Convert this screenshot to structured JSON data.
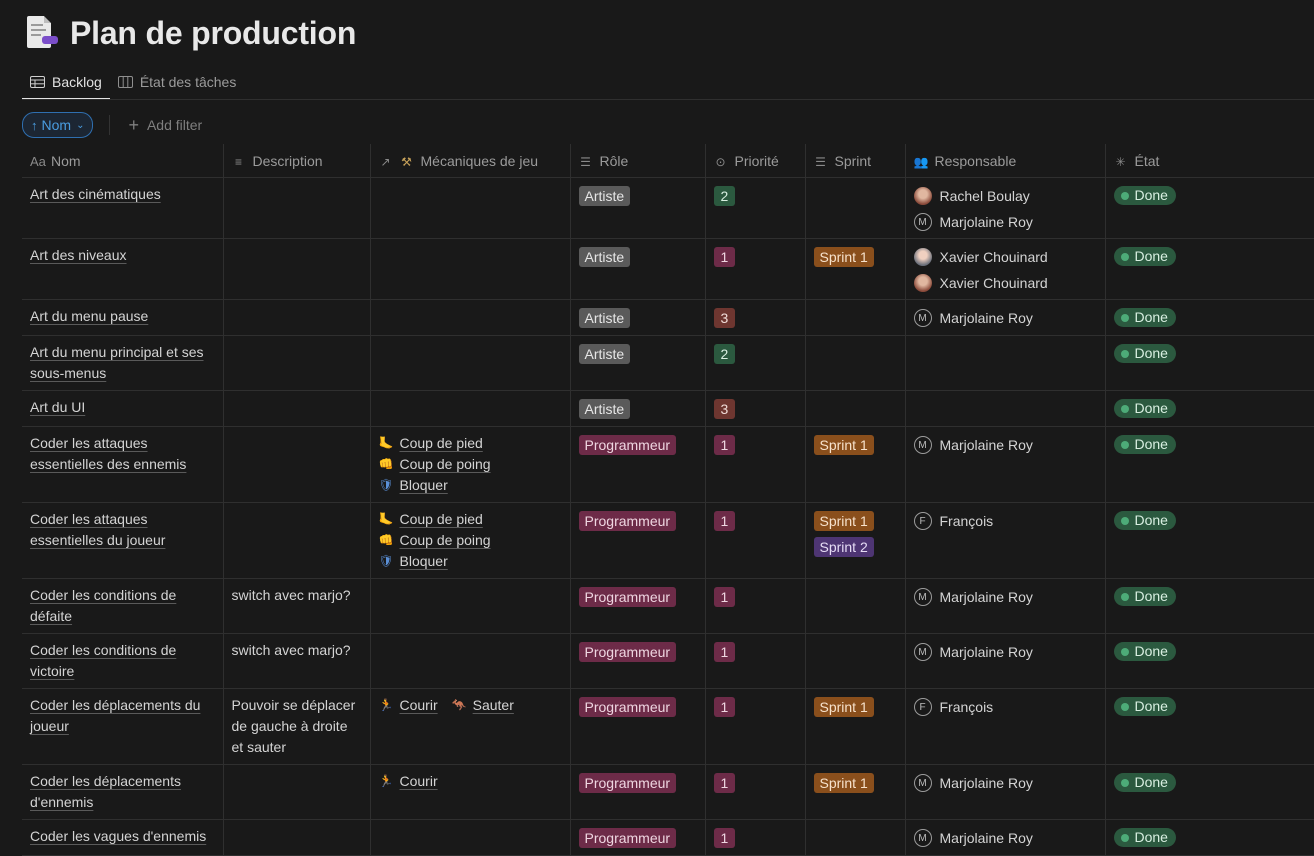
{
  "page": {
    "title": "Plan de production"
  },
  "tabs": [
    {
      "label": "Backlog",
      "active": true
    },
    {
      "label": "État des tâches",
      "active": false
    }
  ],
  "filters": {
    "sort_label": "Nom",
    "add_filter_label": "Add filter"
  },
  "columns": {
    "name": "Nom",
    "description": "Description",
    "mechanics": "Mécaniques de jeu",
    "role": "Rôle",
    "priority": "Priorité",
    "sprint": "Sprint",
    "owner": "Responsable",
    "state": "État"
  },
  "rows": [
    {
      "name": "Art des cinématiques",
      "description": "",
      "mechanics": [],
      "role": "Artiste",
      "priority": "2",
      "sprints": [],
      "owners": [
        {
          "name": "Rachel Boulay",
          "avatar": "photo-a"
        },
        {
          "name": "Marjolaine Roy",
          "avatar": "M"
        }
      ],
      "state": "Done"
    },
    {
      "name": "Art des niveaux",
      "description": "",
      "mechanics": [],
      "role": "Artiste",
      "priority": "1",
      "sprints": [
        "Sprint 1"
      ],
      "owners": [
        {
          "name": "Xavier Chouinard",
          "avatar": "photo-b"
        },
        {
          "name": "Xavier Chouinard",
          "avatar": "photo-a"
        }
      ],
      "state": "Done"
    },
    {
      "name": "Art du menu pause",
      "description": "",
      "mechanics": [],
      "role": "Artiste",
      "priority": "3",
      "sprints": [],
      "owners": [
        {
          "name": "Marjolaine Roy",
          "avatar": "M"
        }
      ],
      "state": "Done"
    },
    {
      "name": "Art du menu principal et ses sous-menus",
      "description": "",
      "mechanics": [],
      "role": "Artiste",
      "priority": "2",
      "sprints": [],
      "owners": [],
      "state": "Done"
    },
    {
      "name": "Art du UI",
      "description": "",
      "mechanics": [],
      "role": "Artiste",
      "priority": "3",
      "sprints": [],
      "owners": [],
      "state": "Done"
    },
    {
      "name": "Coder les attaques essentielles des ennemis",
      "description": "",
      "mechanics": [
        {
          "icon": "foot-icon",
          "label": "Coup de pied"
        },
        {
          "icon": "fist-icon",
          "label": "Coup de poing"
        },
        {
          "icon": "shield-icon",
          "label": "Bloquer"
        }
      ],
      "role": "Programmeur",
      "priority": "1",
      "sprints": [
        "Sprint 1"
      ],
      "owners": [
        {
          "name": "Marjolaine Roy",
          "avatar": "M"
        }
      ],
      "state": "Done"
    },
    {
      "name": "Coder les attaques essentielles du joueur",
      "description": "",
      "mechanics": [
        {
          "icon": "foot-icon",
          "label": "Coup de pied"
        },
        {
          "icon": "fist-icon",
          "label": "Coup de poing"
        },
        {
          "icon": "shield-icon",
          "label": "Bloquer"
        }
      ],
      "role": "Programmeur",
      "priority": "1",
      "sprints": [
        "Sprint 1",
        "Sprint 2"
      ],
      "owners": [
        {
          "name": "François",
          "avatar": "F"
        }
      ],
      "state": "Done"
    },
    {
      "name": "Coder les conditions de défaite",
      "description": "switch avec marjo?",
      "mechanics": [],
      "role": "Programmeur",
      "priority": "1",
      "sprints": [],
      "owners": [
        {
          "name": "Marjolaine Roy",
          "avatar": "M"
        }
      ],
      "state": "Done"
    },
    {
      "name": "Coder les conditions de victoire",
      "description": "switch avec marjo?",
      "mechanics": [],
      "role": "Programmeur",
      "priority": "1",
      "sprints": [],
      "owners": [
        {
          "name": "Marjolaine Roy",
          "avatar": "M"
        }
      ],
      "state": "Done"
    },
    {
      "name": "Coder les déplacements du joueur",
      "description": "Pouvoir se déplacer de gauche à droite et sauter",
      "mechanics_inline": [
        {
          "icon": "runner-icon",
          "label": "Courir"
        },
        {
          "icon": "kangaroo-icon",
          "label": "Sauter"
        }
      ],
      "mechanics": [],
      "role": "Programmeur",
      "priority": "1",
      "sprints": [
        "Sprint 1"
      ],
      "owners": [
        {
          "name": "François",
          "avatar": "F"
        }
      ],
      "state": "Done"
    },
    {
      "name": "Coder les déplacements d'ennemis",
      "description": "",
      "mechanics": [
        {
          "icon": "runner-icon",
          "label": "Courir"
        }
      ],
      "role": "Programmeur",
      "priority": "1",
      "sprints": [
        "Sprint 1"
      ],
      "owners": [
        {
          "name": "Marjolaine Roy",
          "avatar": "M"
        }
      ],
      "state": "Done"
    },
    {
      "name": "Coder les vagues d'ennemis",
      "description": "",
      "mechanics": [],
      "role": "Programmeur",
      "priority": "1",
      "sprints": [],
      "owners": [
        {
          "name": "Marjolaine Roy",
          "avatar": "M"
        }
      ],
      "state": "Done"
    }
  ]
}
